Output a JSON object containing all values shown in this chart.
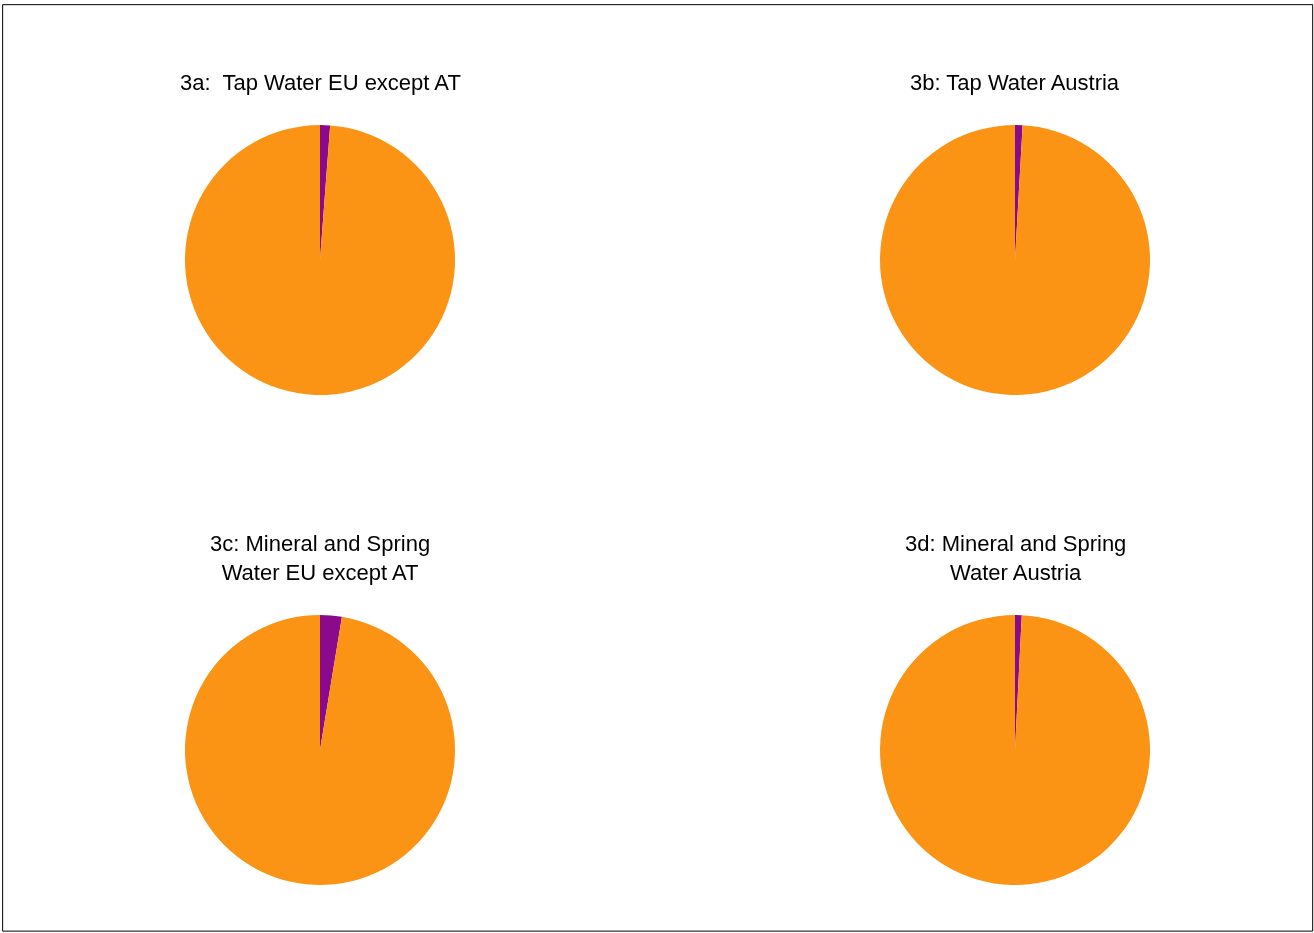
{
  "chart_data": [
    {
      "type": "pie",
      "title": "3a:  Tap Water EU except AT",
      "categories": [
        null,
        null
      ],
      "values": [
        1.2,
        98.8
      ],
      "colors": [
        "#8b0a8c",
        "#fb9414"
      ]
    },
    {
      "type": "pie",
      "title": "3b: Tap Water Austria",
      "categories": [
        null,
        null
      ],
      "values": [
        0.9,
        99.1
      ],
      "colors": [
        "#8b0a8c",
        "#fb9414"
      ]
    },
    {
      "type": "pie",
      "title": "3c: Mineral and Spring\nWater EU except AT",
      "categories": [
        null,
        null
      ],
      "values": [
        2.6,
        97.4
      ],
      "colors": [
        "#8b0a8c",
        "#fb9414"
      ]
    },
    {
      "type": "pie",
      "title": "3d: Mineral and Spring\nWater Austria",
      "categories": [
        null,
        null
      ],
      "values": [
        0.8,
        99.2
      ],
      "colors": [
        "#8b0a8c",
        "#fb9414"
      ]
    }
  ]
}
